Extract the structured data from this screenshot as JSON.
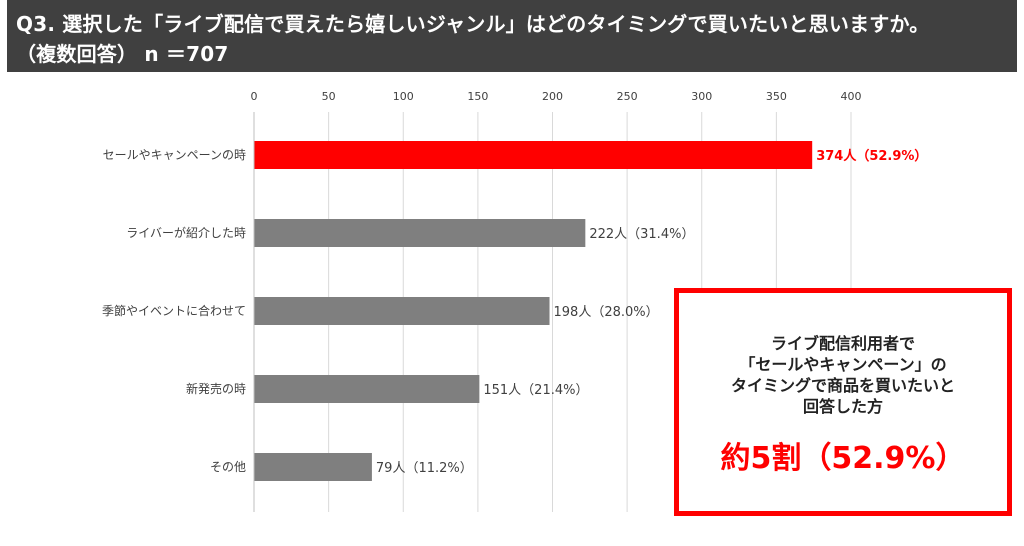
{
  "header": {
    "question": "Q3. 選択した「ライブ配信で買えたら嬉しいジャンル」はどのタイミングで買いたいと思いますか。",
    "subtitle": "（複数回答） n ＝707"
  },
  "chart_data": {
    "type": "bar",
    "orientation": "horizontal",
    "categories": [
      "セールやキャンペーンの時",
      "ライバーが紹介した時",
      "季節やイベントに合わせて",
      "新発売の時",
      "その他"
    ],
    "values": [
      374,
      222,
      198,
      151,
      79
    ],
    "value_labels": [
      "374人（52.9%）",
      "222人（31.4%）",
      "198人（28.0%）",
      "151人（21.4%）",
      "79人（11.2%）"
    ],
    "xlim": [
      0,
      400
    ],
    "ticks": [
      0,
      50,
      100,
      150,
      200,
      250,
      300,
      350,
      400
    ],
    "tick_labels": [
      "0",
      "50",
      "100",
      "150",
      "200",
      "250",
      "300",
      "350",
      "400"
    ],
    "x_axis_position": "top",
    "grid": "vertical",
    "highlight_index": 0,
    "colors": {
      "highlight": "#ff0000",
      "bar": "#7f7f7f",
      "grid": "#d9d9d9",
      "label": "#404040"
    }
  },
  "callout": {
    "lines": [
      "ライブ配信利用者で",
      "「セールやキャンペーン」の",
      "タイミングで商品を買いたいと",
      "回答した方"
    ],
    "highlight": "約5割（52.9%）"
  }
}
